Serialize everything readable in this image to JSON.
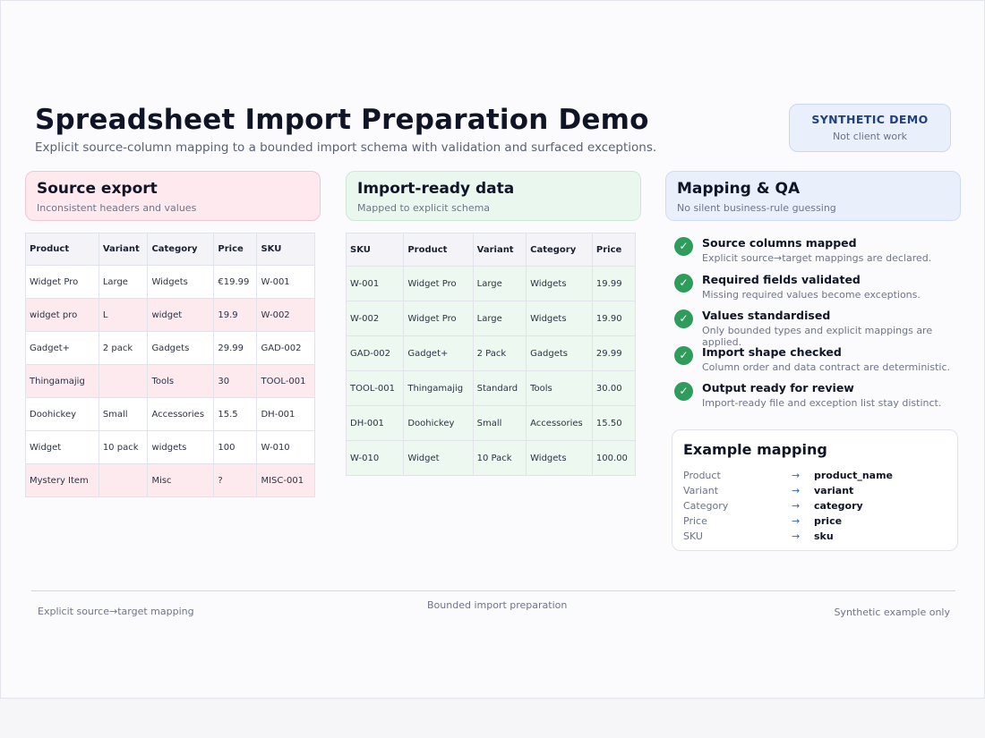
{
  "header": {
    "title": "Spreadsheet Import Preparation Demo",
    "subtitle": "Explicit source-column mapping to a bounded import schema with validation and surfaced exceptions.",
    "badge_title": "SYNTHETIC DEMO",
    "badge_sub": "Not client work"
  },
  "source": {
    "title": "Source export",
    "subtitle": "Inconsistent headers and values",
    "columns": [
      "Product",
      "Variant",
      "Category",
      "Price",
      "SKU"
    ],
    "rows": [
      [
        "Widget Pro",
        "Large",
        "Widgets",
        "€19.99",
        "W-001"
      ],
      [
        "widget pro",
        "L",
        "widget",
        "19.9",
        "W-002"
      ],
      [
        "Gadget+",
        "2 pack",
        "Gadgets",
        "29.99",
        "GAD-002"
      ],
      [
        "Thingamajig",
        "",
        "Tools",
        "30",
        "TOOL-001"
      ],
      [
        "Doohickey",
        "Small",
        "Accessories",
        "15.5",
        "DH-001"
      ],
      [
        "Widget",
        "10 pack",
        "widgets",
        "100",
        "W-010"
      ],
      [
        "Mystery Item",
        "",
        "Misc",
        "?",
        "MISC-001"
      ]
    ],
    "highlight_color": "#fdeaef"
  },
  "import": {
    "title": "Import-ready data",
    "subtitle": "Mapped to explicit schema",
    "columns": [
      "SKU",
      "Product",
      "Variant",
      "Category",
      "Price"
    ],
    "rows": [
      [
        "W-001",
        "Widget Pro",
        "Large",
        "Widgets",
        "19.99"
      ],
      [
        "W-002",
        "Widget Pro",
        "Large",
        "Widgets",
        "19.90"
      ],
      [
        "GAD-002",
        "Gadget+",
        "2 Pack",
        "Gadgets",
        "29.99"
      ],
      [
        "TOOL-001",
        "Thingamajig",
        "Standard",
        "Tools",
        "30.00"
      ],
      [
        "DH-001",
        "Doohickey",
        "Small",
        "Accessories",
        "15.50"
      ],
      [
        "W-010",
        "Widget",
        "10 Pack",
        "Widgets",
        "100.00"
      ]
    ],
    "fill_color": "#edf8f0"
  },
  "qa": {
    "title": "Mapping & QA",
    "subtitle": "No silent business-rule guessing",
    "icon": "check-circle-icon",
    "accent": "#2e9c5a",
    "items": [
      {
        "title": "Source columns mapped",
        "desc": "Explicit source→target mappings are declared."
      },
      {
        "title": "Required fields validated",
        "desc": "Missing required values become exceptions."
      },
      {
        "title": "Values standardised",
        "desc": "Only bounded types and explicit mappings are applied."
      },
      {
        "title": "Import shape checked",
        "desc": "Column order and data contract are deterministic."
      },
      {
        "title": "Output ready for review",
        "desc": "Import-ready file and exception list stay distinct."
      }
    ]
  },
  "mapping": {
    "title": "Example mapping",
    "arrow": "→",
    "rows": [
      {
        "from": "Product",
        "to": "product_name"
      },
      {
        "from": "Variant",
        "to": "variant"
      },
      {
        "from": "Category",
        "to": "category"
      },
      {
        "from": "Price",
        "to": "price"
      },
      {
        "from": "SKU",
        "to": "sku"
      }
    ]
  },
  "footer": {
    "left": "Explicit source→target mapping",
    "center": "Bounded import preparation",
    "right": "Synthetic example only"
  }
}
